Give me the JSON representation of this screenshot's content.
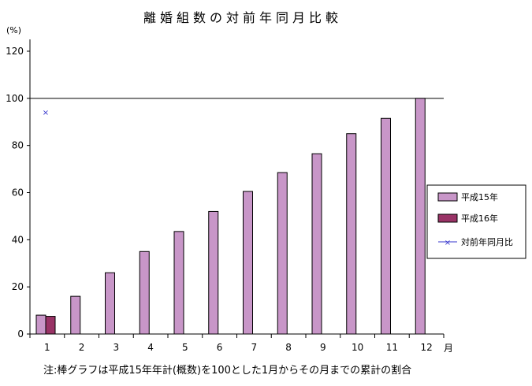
{
  "chart_data": {
    "type": "bar",
    "title": "離婚組数の対前年同月比較",
    "ylabel": "(%)",
    "xlabel": "月",
    "categories": [
      "1",
      "2",
      "3",
      "4",
      "5",
      "6",
      "7",
      "8",
      "9",
      "10",
      "11",
      "12"
    ],
    "ylim": [
      0,
      120
    ],
    "yticks": [
      "0",
      "20",
      "40",
      "60",
      "80",
      "100",
      "120"
    ],
    "reference_line": 100,
    "series": [
      {
        "name": "平成15年",
        "kind": "bar",
        "color": "#c896c8",
        "values": [
          8,
          16,
          26,
          35,
          43.5,
          52,
          60.5,
          68.5,
          76.5,
          85,
          91.5,
          100
        ]
      },
      {
        "name": "平成16年",
        "kind": "bar",
        "color": "#993366",
        "values": [
          7.5,
          null,
          null,
          null,
          null,
          null,
          null,
          null,
          null,
          null,
          null,
          null
        ]
      },
      {
        "name": "対前年同月比",
        "kind": "marker",
        "color": "#3333cc",
        "values": [
          94,
          null,
          null,
          null,
          null,
          null,
          null,
          null,
          null,
          null,
          null,
          null
        ]
      }
    ],
    "legend_position": "right",
    "grid": false,
    "note": "注:棒グラフは平成15年年計(概数)を100とした1月からその月までの累計の割合"
  }
}
